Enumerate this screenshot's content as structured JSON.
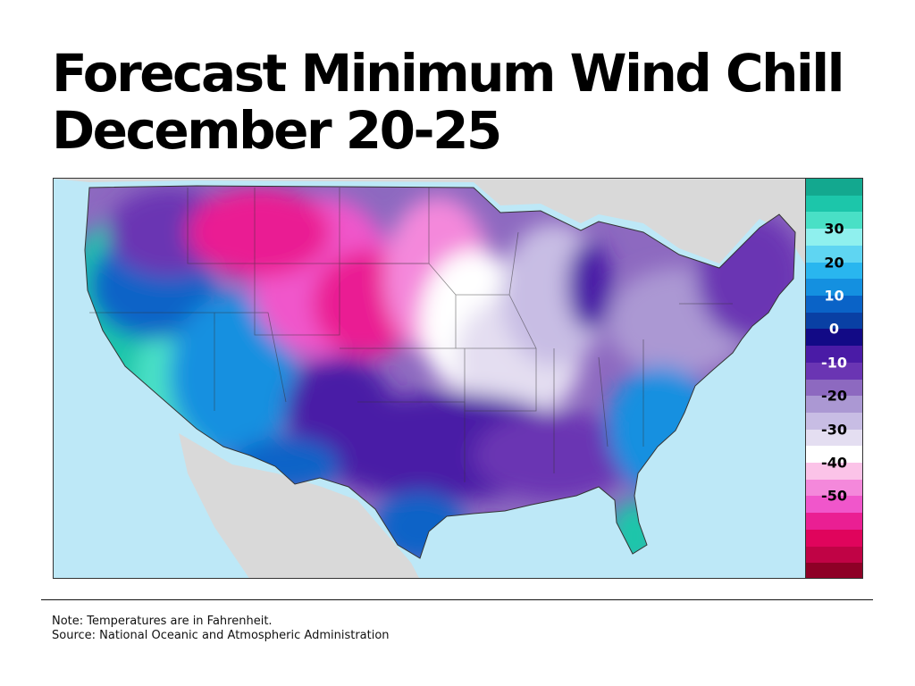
{
  "title": {
    "line1": "Forecast Minimum Wind Chill",
    "line2": "December 20-25"
  },
  "map": {
    "region": "United States",
    "land_gray": "#d9d9d9",
    "water_color": "#bde8f7"
  },
  "legend": {
    "bands": [
      {
        "color": "#13a88f"
      },
      {
        "color": "#1cc6aa"
      },
      {
        "color": "#49e0c6"
      },
      {
        "color": "#8ff0ee"
      },
      {
        "color": "#5fd5f2"
      },
      {
        "color": "#29b6ef"
      },
      {
        "color": "#1490e0"
      },
      {
        "color": "#0a63c7"
      },
      {
        "color": "#0940a4"
      },
      {
        "color": "#120a86"
      },
      {
        "color": "#4a1ba6"
      },
      {
        "color": "#6a35b3"
      },
      {
        "color": "#8d69c0"
      },
      {
        "color": "#ab98d3"
      },
      {
        "color": "#c8bde4"
      },
      {
        "color": "#e4def1"
      },
      {
        "color": "#ffffff"
      },
      {
        "color": "#fbc3e8"
      },
      {
        "color": "#f488db"
      },
      {
        "color": "#f056cb"
      },
      {
        "color": "#ea1f93"
      },
      {
        "color": "#e0045c"
      },
      {
        "color": "#c00345"
      },
      {
        "color": "#8e0026"
      }
    ],
    "labels": [
      {
        "text": "30",
        "band": 2,
        "color": "#000000"
      },
      {
        "text": "20",
        "band": 4,
        "color": "#000000"
      },
      {
        "text": "10",
        "band": 6,
        "color": "#ffffff"
      },
      {
        "text": "0",
        "band": 8,
        "color": "#ffffff"
      },
      {
        "text": "-10",
        "band": 10,
        "color": "#ffffff"
      },
      {
        "text": "-20",
        "band": 12,
        "color": "#000000"
      },
      {
        "text": "-30",
        "band": 14,
        "color": "#000000"
      },
      {
        "text": "-40",
        "band": 16,
        "color": "#000000"
      },
      {
        "text": "-50",
        "band": 18,
        "color": "#000000"
      }
    ]
  },
  "notes": {
    "note": "Note: Temperatures are in Fahrenheit.",
    "source": "Source: National Oceanic and Atmospheric Administration"
  }
}
